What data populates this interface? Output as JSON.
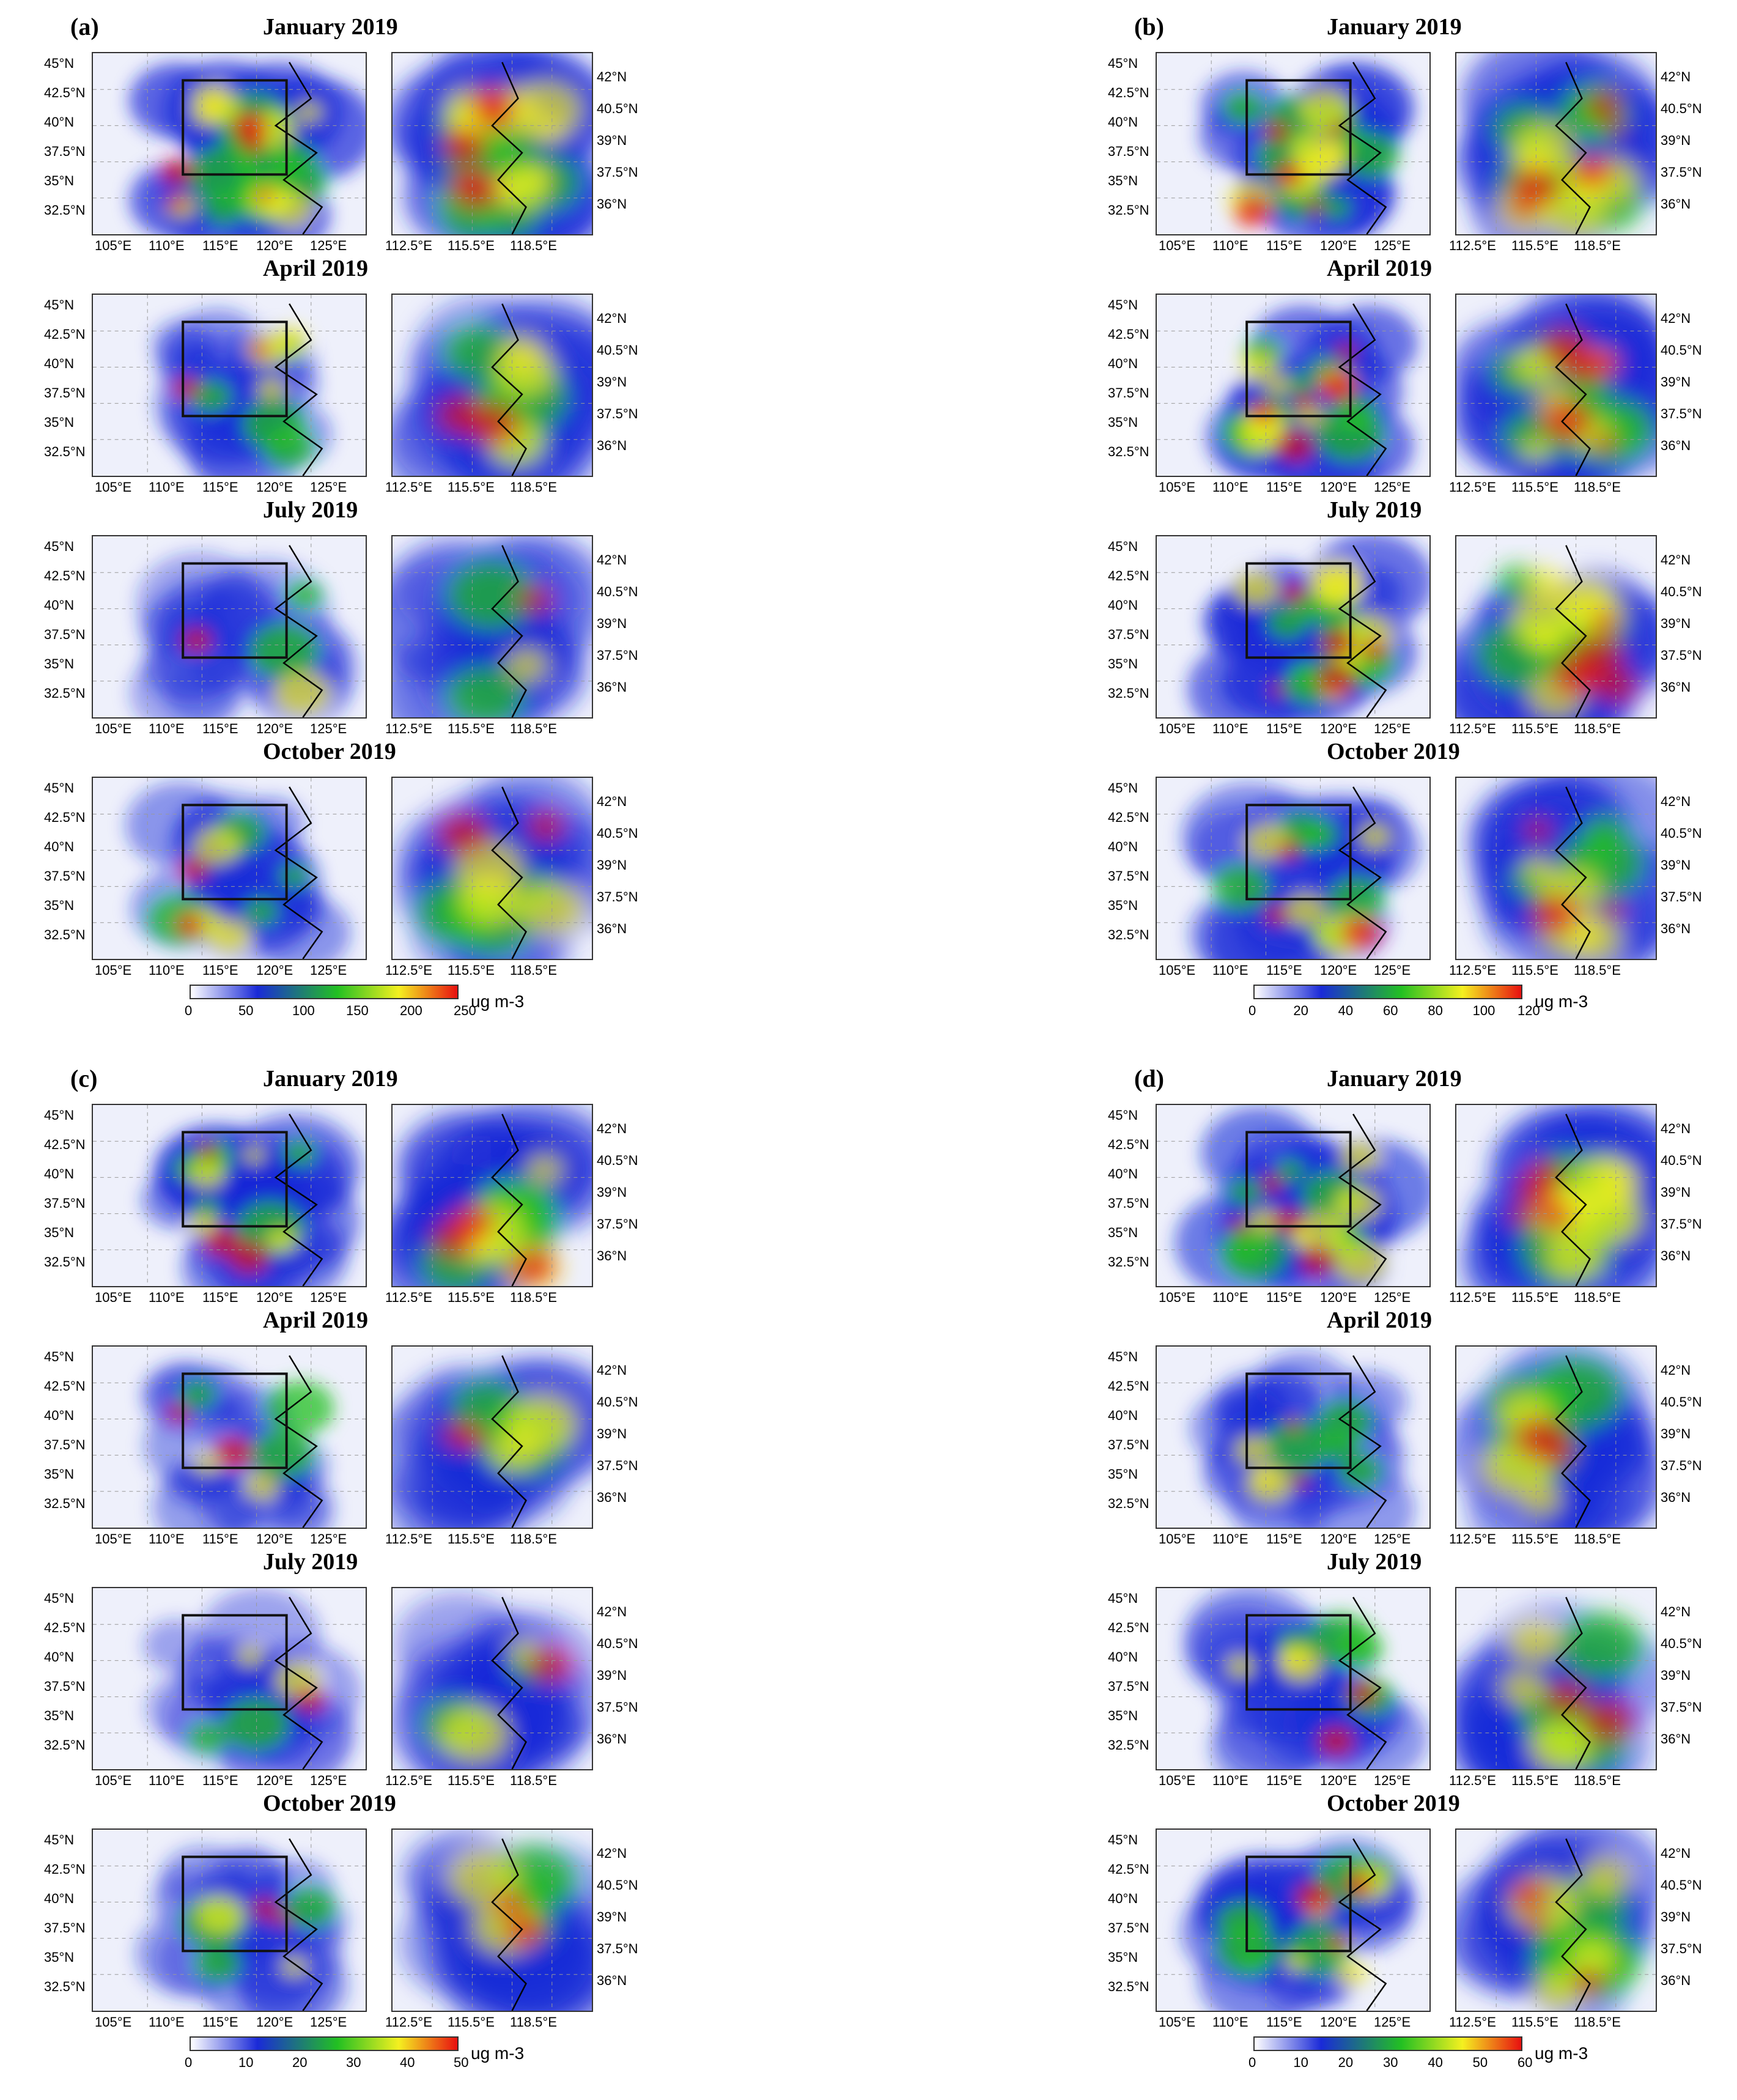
{
  "panels": [
    {
      "id": "a",
      "label": "(a)",
      "months": [
        "January 2019",
        "April 2019",
        "July 2019",
        "October 2019"
      ],
      "colorbar": {
        "ticks": [
          "0",
          "50",
          "100",
          "150",
          "200",
          "250"
        ],
        "unit": "ug m-3"
      },
      "intensity": [
        0.95,
        0.35,
        0.15,
        0.4
      ]
    },
    {
      "id": "b",
      "label": "(b)",
      "months": [
        "January 2019",
        "April 2019",
        "July 2019",
        "October 2019"
      ],
      "colorbar": {
        "ticks": [
          "0",
          "20",
          "40",
          "60",
          "80",
          "100",
          "120"
        ],
        "unit": "ug m-3"
      },
      "intensity": [
        0.75,
        0.8,
        0.8,
        0.45
      ]
    },
    {
      "id": "c",
      "label": "(c)",
      "months": [
        "January 2019",
        "April 2019",
        "July 2019",
        "October 2019"
      ],
      "colorbar": {
        "ticks": [
          "0",
          "10",
          "20",
          "30",
          "40",
          "50"
        ],
        "unit": "ug m-3"
      },
      "intensity": [
        0.55,
        0.3,
        0.2,
        0.3
      ]
    },
    {
      "id": "d",
      "label": "(d)",
      "months": [
        "January 2019",
        "April 2019",
        "July 2019",
        "October 2019"
      ],
      "colorbar": {
        "ticks": [
          "0",
          "10",
          "20",
          "30",
          "40",
          "50",
          "60"
        ],
        "unit": "ug m-3"
      },
      "intensity": [
        0.7,
        0.35,
        0.35,
        0.55
      ]
    }
  ],
  "axes": {
    "main_lat": [
      "45°N",
      "42.5°N",
      "40°N",
      "37.5°N",
      "35°N",
      "32.5°N"
    ],
    "main_lon": [
      "105°E",
      "110°E",
      "115°E",
      "120°E",
      "125°E"
    ],
    "zoom_lat": [
      "42°N",
      "40.5°N",
      "39°N",
      "37.5°N",
      "36°N"
    ],
    "zoom_lon": [
      "112.5°E",
      "115.5°E",
      "118.5°E"
    ]
  },
  "colors": {
    "low": "#ffffff",
    "blue": "#1a2ad8",
    "green": "#22c022",
    "yellow": "#f4f020",
    "red": "#e81010"
  }
}
